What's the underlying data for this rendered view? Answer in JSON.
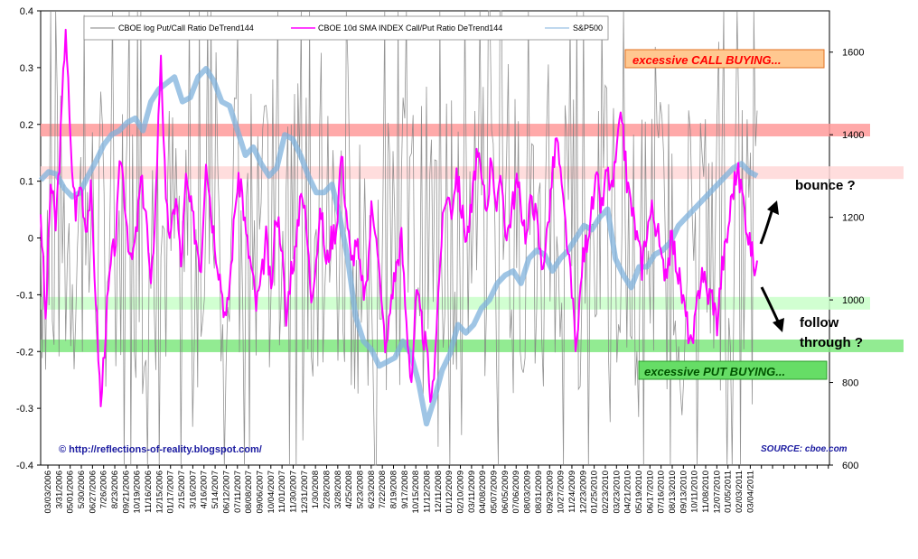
{
  "chart_data": {
    "type": "line",
    "left_axis": {
      "range": [
        -0.4,
        0.4
      ],
      "ticks": [
        "0.4",
        "0.3",
        "0.2",
        "0.1",
        "0",
        "-0.1",
        "-0.2",
        "-0.3",
        "-0.4"
      ]
    },
    "right_axis": {
      "range": [
        600,
        1700
      ],
      "ticks": [
        "1600",
        "1400",
        "1200",
        "1000",
        "800",
        "600"
      ]
    },
    "x_tick_labels": [
      "03/03/2006",
      "3/31/2006",
      "05/01/2006",
      "5/30/2006",
      "06/27/2006",
      "7/26/2006",
      "8/23/2006",
      "09/21/2006",
      "10/19/2006",
      "11/16/2006",
      "12/15/2006",
      "01/17/2007",
      "2/15/2007",
      "3/16/2007",
      "4/16/2007",
      "5/14/2007",
      "06/12/2007",
      "07/11/2007",
      "08/08/2007",
      "09/06/2007",
      "10/04/2007",
      "11/01/2007",
      "11/30/2007",
      "12/31/2007",
      "1/30/2008",
      "2/28/2008",
      "3/28/2008",
      "4/25/2008",
      "5/23/2008",
      "6/23/2008",
      "7/22/2008",
      "8/19/2008",
      "9/17/2008",
      "10/15/2008",
      "11/12/2008",
      "12/11/2008",
      "01/12/2009",
      "02/10/2009",
      "03/11/2009",
      "04/08/2009",
      "05/07/2009",
      "06/05/2009",
      "07/06/2009",
      "08/03/2009",
      "08/31/2009",
      "09/29/2009",
      "10/27/2009",
      "11/24/2009",
      "12/23/2009",
      "01/25/2010",
      "02/23/2010",
      "03/23/2010",
      "04/21/2010",
      "05/19/2010",
      "06/17/2010",
      "07/16/2010",
      "08/13/2010",
      "09/13/2010",
      "10/11/2010",
      "11/08/2010",
      "12/07/2010",
      "01/05/2011",
      "02/03/2011",
      "03/04/2011"
    ],
    "series": [
      {
        "name": "CBOE log Put/Call Ratio DeTrend144",
        "color": "#808080",
        "axis": "left"
      },
      {
        "name": "CBOE 10d SMA INDEX Call/Put Ratio DeTrend144",
        "color": "#ff00ff",
        "axis": "left",
        "values": [
          0.05,
          -0.15,
          0.1,
          0.02,
          0.18,
          0.38,
          0.15,
          0.05,
          0.1,
          0.02,
          0.08,
          -0.1,
          -0.3,
          -0.15,
          -0.05,
          0.0,
          0.15,
          0.05,
          -0.05,
          0.0,
          0.1,
          0.05,
          -0.1,
          0.08,
          0.33,
          0.05,
          0.0,
          0.08,
          -0.05,
          0.1,
          0.05,
          0.0,
          -0.05,
          0.15,
          0.05,
          -0.02,
          -0.08,
          -0.15,
          -0.05,
          0.08,
          0.1,
          0.0,
          -0.05,
          -0.12,
          -0.08,
          0.0,
          -0.1,
          0.05,
          0.0,
          -0.15,
          -0.05,
          -0.02,
          0.1,
          0.02,
          -0.1,
          -0.03,
          0.05,
          -0.05,
          0.0,
          0.02,
          0.15,
          0.05,
          -0.05,
          0.0,
          -0.08,
          -0.1,
          0.05,
          0.02,
          -0.12,
          -0.2,
          -0.1,
          -0.05,
          0.0,
          -0.15,
          -0.25,
          -0.1,
          -0.15,
          -0.2,
          -0.3,
          -0.15,
          0.0,
          0.08,
          0.05,
          0.12,
          0.05,
          0.0,
          0.05,
          0.15,
          0.1,
          0.05,
          0.15,
          0.05,
          0.1,
          0.0,
          0.05,
          0.1,
          0.05,
          0.0,
          0.08,
          0.03,
          -0.05,
          0.0,
          0.1,
          0.18,
          0.08,
          0.0,
          -0.1,
          -0.2,
          -0.05,
          0.0,
          0.05,
          0.1,
          0.05,
          0.12,
          0.08,
          0.15,
          0.22,
          0.1,
          0.05,
          0.0,
          -0.05,
          0.02,
          0.05,
          0.02,
          -0.05,
          -0.05,
          0.0,
          -0.05,
          -0.1,
          -0.15,
          -0.2,
          -0.12,
          -0.05,
          -0.1,
          -0.1,
          -0.15,
          -0.05,
          0.0,
          0.08,
          0.12,
          0.08,
          0.02,
          -0.03,
          -0.06
        ]
      },
      {
        "name": "S&P500",
        "color": "#7fb2dc",
        "axis": "right",
        "values": [
          1290,
          1310,
          1305,
          1270,
          1250,
          1260,
          1300,
          1335,
          1375,
          1400,
          1410,
          1430,
          1440,
          1410,
          1480,
          1510,
          1525,
          1540,
          1480,
          1490,
          1540,
          1560,
          1530,
          1480,
          1470,
          1410,
          1350,
          1370,
          1330,
          1300,
          1320,
          1400,
          1390,
          1350,
          1300,
          1260,
          1260,
          1280,
          1200,
          1100,
          960,
          900,
          880,
          840,
          850,
          860,
          900,
          870,
          800,
          700,
          760,
          830,
          870,
          940,
          920,
          940,
          980,
          1000,
          1040,
          1060,
          1070,
          1040,
          1100,
          1120,
          1110,
          1070,
          1100,
          1120,
          1150,
          1180,
          1170,
          1200,
          1220,
          1100,
          1060,
          1030,
          1080,
          1080,
          1110,
          1120,
          1140,
          1180,
          1200,
          1220,
          1240,
          1260,
          1280,
          1300,
          1320,
          1330,
          1310,
          1300
        ]
      }
    ],
    "annotations": {
      "call_buying": "excessive CALL BUYING...",
      "put_buying": "excessive PUT BUYING...",
      "bounce": "bounce ?",
      "follow": "follow",
      "through": "through ?",
      "credit": "© http://reflections-of-reality.blogspot.com/",
      "source": "SOURCE: cboe.com"
    },
    "bands": [
      {
        "level": 0.19,
        "color": "#ff9a9a"
      },
      {
        "level": 0.115,
        "color": "#ffd7d7"
      },
      {
        "level": -0.115,
        "color": "#c9ffc9"
      },
      {
        "level": -0.19,
        "color": "#7fe77f"
      }
    ],
    "colors": {
      "call_box_fill": "#ffc890",
      "call_text": "#ff0000",
      "put_box_fill": "#66dd66",
      "put_text": "#005500"
    }
  }
}
